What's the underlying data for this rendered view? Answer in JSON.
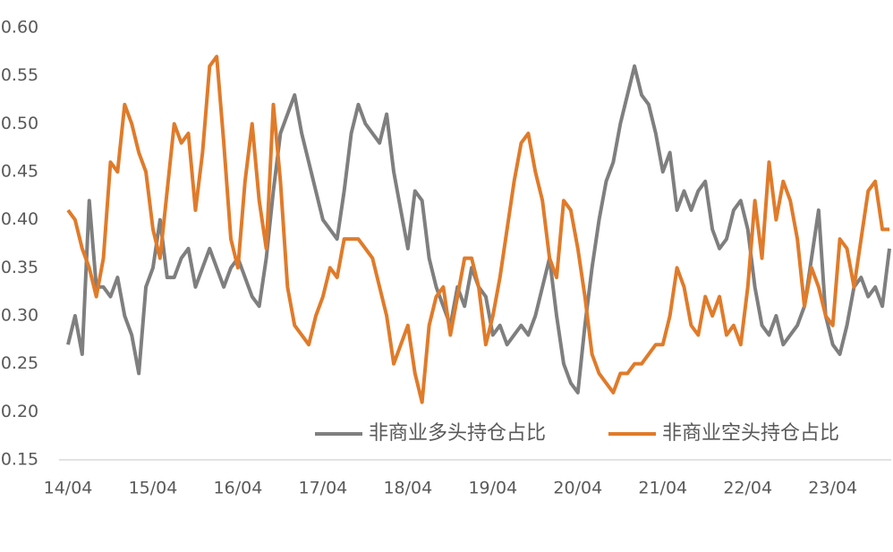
{
  "chart_data": {
    "type": "line",
    "categories": [
      "14/04",
      null,
      null,
      null,
      null,
      null,
      null,
      null,
      null,
      null,
      null,
      null,
      "15/04",
      null,
      null,
      null,
      null,
      null,
      null,
      null,
      null,
      null,
      null,
      null,
      "16/04",
      null,
      null,
      null,
      null,
      null,
      null,
      null,
      null,
      null,
      null,
      null,
      "17/04",
      null,
      null,
      null,
      null,
      null,
      null,
      null,
      null,
      null,
      null,
      null,
      "18/04",
      null,
      null,
      null,
      null,
      null,
      null,
      null,
      null,
      null,
      null,
      null,
      "19/04",
      null,
      null,
      null,
      null,
      null,
      null,
      null,
      null,
      null,
      null,
      null,
      "20/04",
      null,
      null,
      null,
      null,
      null,
      null,
      null,
      null,
      null,
      null,
      null,
      "21/04",
      null,
      null,
      null,
      null,
      null,
      null,
      null,
      null,
      null,
      null,
      null,
      "22/04",
      null,
      null,
      null,
      null,
      null,
      null,
      null,
      null,
      null,
      null,
      null,
      "23/04",
      null,
      null,
      null,
      null,
      null,
      null,
      null,
      null
    ],
    "series": [
      {
        "name": "非商业多头持仓占比",
        "color": "#7f7f7f",
        "values": [
          0.27,
          0.3,
          0.26,
          0.42,
          0.33,
          0.33,
          0.32,
          0.34,
          0.3,
          0.28,
          0.24,
          0.33,
          0.35,
          0.4,
          0.34,
          0.34,
          0.36,
          0.37,
          0.33,
          0.35,
          0.37,
          0.35,
          0.33,
          0.35,
          0.36,
          0.34,
          0.32,
          0.31,
          0.36,
          0.43,
          0.49,
          0.51,
          0.53,
          0.49,
          0.46,
          0.43,
          0.4,
          0.39,
          0.38,
          0.43,
          0.49,
          0.52,
          0.5,
          0.49,
          0.48,
          0.51,
          0.45,
          0.41,
          0.37,
          0.43,
          0.42,
          0.36,
          0.33,
          0.31,
          0.29,
          0.33,
          0.31,
          0.35,
          0.33,
          0.32,
          0.28,
          0.29,
          0.27,
          0.28,
          0.29,
          0.28,
          0.3,
          0.33,
          0.36,
          0.3,
          0.25,
          0.23,
          0.22,
          0.29,
          0.35,
          0.4,
          0.44,
          0.46,
          0.5,
          0.53,
          0.56,
          0.53,
          0.52,
          0.49,
          0.45,
          0.47,
          0.41,
          0.43,
          0.41,
          0.43,
          0.44,
          0.39,
          0.37,
          0.38,
          0.41,
          0.42,
          0.39,
          0.33,
          0.29,
          0.28,
          0.3,
          0.27,
          0.28,
          0.29,
          0.31,
          0.36,
          0.41,
          0.3,
          0.27,
          0.26,
          0.29,
          0.33,
          0.34,
          0.32,
          0.33,
          0.31,
          0.37
        ]
      },
      {
        "name": "非商业空头持仓占比",
        "color": "#e07b2a",
        "values": [
          0.41,
          0.4,
          0.37,
          0.35,
          0.32,
          0.36,
          0.46,
          0.45,
          0.52,
          0.5,
          0.47,
          0.45,
          0.39,
          0.36,
          0.43,
          0.5,
          0.48,
          0.49,
          0.41,
          0.47,
          0.56,
          0.57,
          0.48,
          0.38,
          0.35,
          0.44,
          0.5,
          0.42,
          0.37,
          0.52,
          0.44,
          0.33,
          0.29,
          0.28,
          0.27,
          0.3,
          0.32,
          0.35,
          0.34,
          0.38,
          0.38,
          0.38,
          0.37,
          0.36,
          0.33,
          0.3,
          0.25,
          0.27,
          0.29,
          0.24,
          0.21,
          0.29,
          0.32,
          0.33,
          0.28,
          0.32,
          0.36,
          0.36,
          0.33,
          0.27,
          0.3,
          0.34,
          0.39,
          0.44,
          0.48,
          0.49,
          0.45,
          0.42,
          0.36,
          0.34,
          0.42,
          0.41,
          0.37,
          0.32,
          0.26,
          0.24,
          0.23,
          0.22,
          0.24,
          0.24,
          0.25,
          0.25,
          0.26,
          0.27,
          0.27,
          0.3,
          0.35,
          0.33,
          0.29,
          0.28,
          0.32,
          0.3,
          0.32,
          0.28,
          0.29,
          0.27,
          0.33,
          0.42,
          0.36,
          0.46,
          0.4,
          0.44,
          0.42,
          0.38,
          0.31,
          0.35,
          0.33,
          0.3,
          0.29,
          0.38,
          0.37,
          0.33,
          0.38,
          0.43,
          0.44,
          0.39,
          0.39
        ]
      }
    ],
    "ylim": [
      0.15,
      0.6
    ],
    "yticks": [
      0.15,
      {
        "value": 0.2,
        "label": "0.20"
      },
      0.25,
      {
        "value": 0.3,
        "label": "0.30"
      },
      0.35,
      {
        "value": 0.4,
        "label": "0.40"
      },
      0.45,
      {
        "value": 0.5,
        "label": "0.50"
      },
      0.55,
      {
        "value": 0.6,
        "label": "0.60"
      }
    ],
    "grid": false
  }
}
